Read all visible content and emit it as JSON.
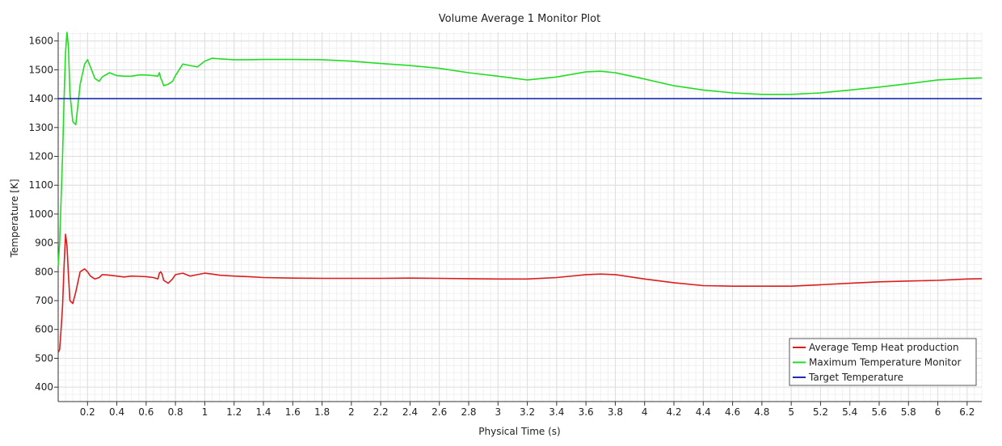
{
  "chart_data": {
    "type": "line",
    "title": "Volume Average 1 Monitor Plot",
    "xlabel": "Physical Time (s)",
    "ylabel": "Temperature [K]",
    "xlim": [
      0,
      6.3
    ],
    "ylim": [
      350,
      1630
    ],
    "xticks": [
      0.2,
      0.4,
      0.6,
      0.8,
      1,
      1.2,
      1.4,
      1.6,
      1.8,
      2,
      2.2,
      2.4,
      2.6,
      2.8,
      3,
      3.2,
      3.4,
      3.6,
      3.8,
      4,
      4.2,
      4.4,
      4.6,
      4.8,
      5,
      5.2,
      5.4,
      5.6,
      5.8,
      6,
      6.2
    ],
    "yticks": [
      400,
      500,
      600,
      700,
      800,
      900,
      1000,
      1100,
      1200,
      1300,
      1400,
      1500,
      1600
    ],
    "grid": true,
    "legend_position": "bottom-right",
    "series": [
      {
        "name": "Average Temp Heat production",
        "color": "#dd1c1c",
        "x": [
          0,
          0.01,
          0.02,
          0.03,
          0.04,
          0.05,
          0.06,
          0.07,
          0.08,
          0.1,
          0.12,
          0.15,
          0.18,
          0.2,
          0.22,
          0.25,
          0.28,
          0.3,
          0.35,
          0.4,
          0.45,
          0.5,
          0.55,
          0.6,
          0.65,
          0.68,
          0.69,
          0.7,
          0.71,
          0.72,
          0.75,
          0.78,
          0.8,
          0.85,
          0.9,
          0.95,
          1,
          1.05,
          1.1,
          1.2,
          1.3,
          1.4,
          1.6,
          1.8,
          2,
          2.2,
          2.4,
          2.6,
          2.8,
          3,
          3.2,
          3.4,
          3.6,
          3.7,
          3.8,
          4,
          4.2,
          4.4,
          4.6,
          4.8,
          5,
          5.2,
          5.4,
          5.6,
          5.8,
          6,
          6.2,
          6.3
        ],
        "y": [
          520,
          530,
          600,
          680,
          820,
          930,
          890,
          790,
          700,
          690,
          730,
          800,
          810,
          800,
          785,
          775,
          780,
          790,
          788,
          785,
          782,
          785,
          784,
          783,
          780,
          775,
          795,
          800,
          790,
          770,
          760,
          775,
          790,
          795,
          785,
          790,
          795,
          792,
          788,
          785,
          783,
          780,
          778,
          777,
          777,
          777,
          778,
          777,
          776,
          775,
          775,
          780,
          790,
          792,
          790,
          775,
          762,
          752,
          750,
          750,
          750,
          755,
          760,
          765,
          768,
          770,
          775,
          776
        ]
      },
      {
        "name": "Maximum Temperature Monitor",
        "color": "#22dd22",
        "x": [
          0,
          0.01,
          0.02,
          0.03,
          0.04,
          0.05,
          0.06,
          0.07,
          0.08,
          0.1,
          0.12,
          0.15,
          0.18,
          0.2,
          0.22,
          0.25,
          0.28,
          0.3,
          0.35,
          0.4,
          0.45,
          0.5,
          0.55,
          0.6,
          0.65,
          0.68,
          0.69,
          0.7,
          0.71,
          0.72,
          0.75,
          0.78,
          0.8,
          0.85,
          0.9,
          0.95,
          1,
          1.05,
          1.1,
          1.2,
          1.3,
          1.4,
          1.6,
          1.8,
          2,
          2.2,
          2.4,
          2.6,
          2.8,
          3,
          3.2,
          3.4,
          3.6,
          3.7,
          3.8,
          4,
          4.2,
          4.4,
          4.6,
          4.8,
          5,
          5.2,
          5.4,
          5.6,
          5.8,
          6,
          6.2,
          6.3
        ],
        "y": [
          820,
          900,
          1050,
          1200,
          1400,
          1560,
          1630,
          1580,
          1420,
          1320,
          1310,
          1450,
          1520,
          1535,
          1510,
          1470,
          1460,
          1475,
          1490,
          1480,
          1478,
          1478,
          1482,
          1482,
          1480,
          1478,
          1490,
          1470,
          1460,
          1445,
          1450,
          1460,
          1480,
          1520,
          1515,
          1510,
          1530,
          1540,
          1538,
          1535,
          1535,
          1536,
          1536,
          1535,
          1530,
          1522,
          1515,
          1505,
          1490,
          1478,
          1465,
          1475,
          1493,
          1495,
          1490,
          1468,
          1445,
          1430,
          1420,
          1415,
          1415,
          1420,
          1430,
          1440,
          1452,
          1465,
          1470,
          1472
        ]
      },
      {
        "name": "Target Temperature",
        "color": "#1a2fb0",
        "x": [
          0,
          6.3
        ],
        "y": [
          1400,
          1400
        ]
      }
    ]
  }
}
